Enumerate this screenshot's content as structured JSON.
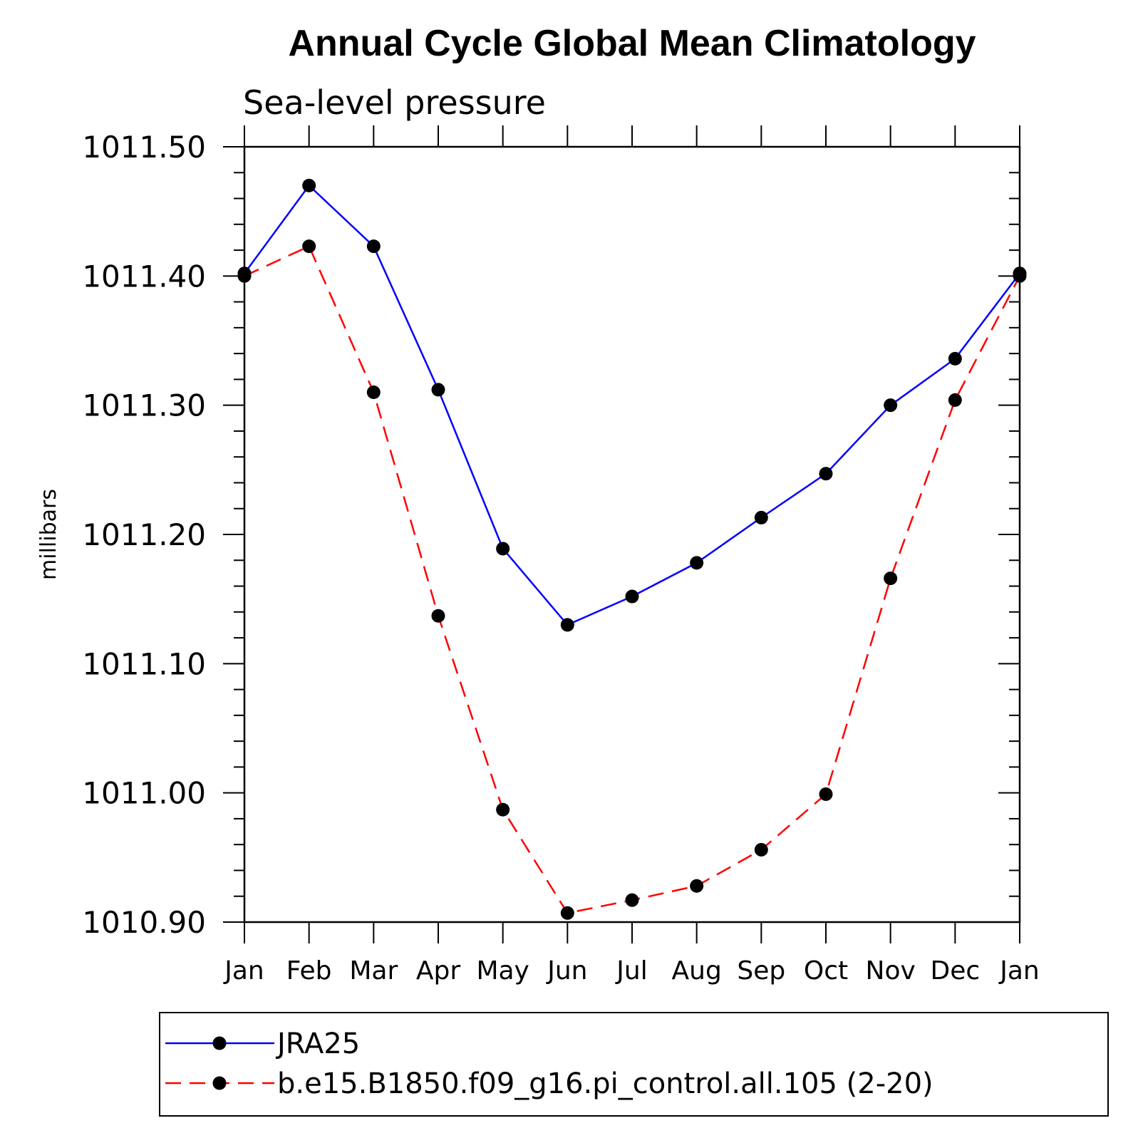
{
  "chart_data": {
    "type": "line",
    "title": "Annual Cycle Global Mean Climatology",
    "subtitle": "Sea-level pressure",
    "ylabel": "millibars",
    "xlabel": "",
    "categories": [
      "Jan",
      "Feb",
      "Mar",
      "Apr",
      "May",
      "Jun",
      "Jul",
      "Aug",
      "Sep",
      "Oct",
      "Nov",
      "Dec",
      "Jan"
    ],
    "ylim": [
      1010.9,
      1011.5
    ],
    "yticks": [
      "1010.90",
      "1011.00",
      "1011.10",
      "1011.20",
      "1011.30",
      "1011.40",
      "1011.50"
    ],
    "grid": false,
    "legend_position": "bottom",
    "series": [
      {
        "name": "JRA25",
        "color": "#0000ff",
        "dash": "solid",
        "marker": "filled-circle",
        "values": [
          1011.402,
          1011.47,
          1011.423,
          1011.312,
          1011.189,
          1011.13,
          1011.152,
          1011.178,
          1011.213,
          1011.247,
          1011.3,
          1011.336,
          1011.402
        ]
      },
      {
        "name": "b.e15.B1850.f09_g16.pi_control.all.105 (2-20)",
        "color": "#ff0000",
        "dash": "dashed",
        "marker": "filled-circle",
        "values": [
          1011.4,
          1011.423,
          1011.31,
          1011.137,
          1010.987,
          1010.907,
          1010.917,
          1010.928,
          1010.956,
          1010.999,
          1011.166,
          1011.304,
          1011.4
        ]
      }
    ]
  }
}
